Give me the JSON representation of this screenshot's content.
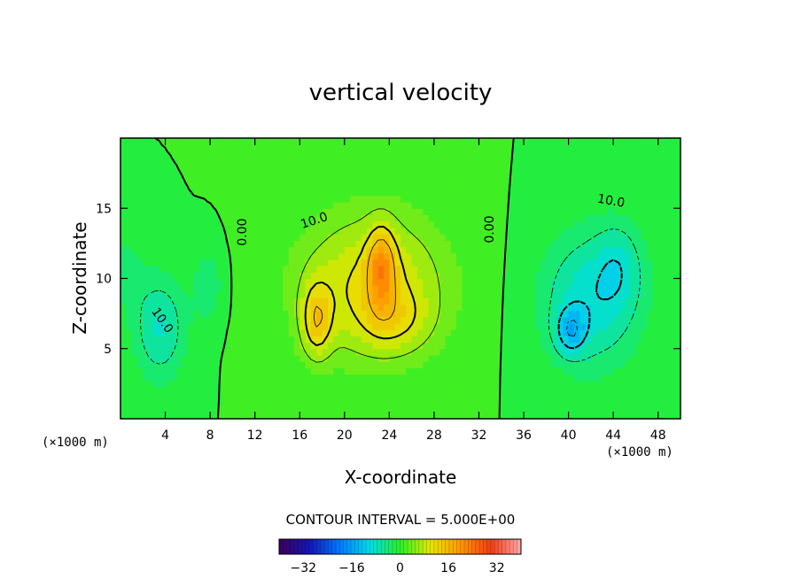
{
  "chart_data": {
    "type": "heatmap",
    "title": "vertical velocity",
    "xlabel": "X-coordinate",
    "ylabel": "Z-coordinate",
    "x_unit": "(×1000 m)",
    "z_unit": "(×1000 m)",
    "xlim": [
      0,
      50
    ],
    "ylim": [
      0,
      20
    ],
    "x_ticks": [
      4,
      8,
      12,
      16,
      20,
      24,
      28,
      32,
      36,
      40,
      44,
      48
    ],
    "y_ticks": [
      5,
      10,
      15
    ],
    "contour_interval_text": "CONTOUR INTERVAL = 5.000E+00",
    "contour_labels": [
      {
        "text": "10.0",
        "x": 17.3,
        "z": 14.1,
        "angle": -18
      },
      {
        "text": "0.00",
        "x": 10.9,
        "z": 13.3,
        "angle": -90
      },
      {
        "text": "0.00",
        "x": 33.0,
        "z": 13.5,
        "angle": -90
      },
      {
        "text": "10.0",
        "x": 43.8,
        "z": 15.5,
        "angle": 10
      },
      {
        "text": "10.0",
        "x": 3.7,
        "z": 7.0,
        "angle": 55
      }
    ],
    "colorbar": {
      "range": [
        -40,
        40
      ],
      "ticks": [
        -32,
        -16,
        0,
        16,
        32
      ]
    },
    "features": [
      {
        "cx": 22.5,
        "cz": 9.5,
        "sx": 6.5,
        "sz": 5.2,
        "amp": 11
      },
      {
        "cx": 17.5,
        "cz": 7.0,
        "sx": 1.3,
        "sz": 2.6,
        "amp": 11
      },
      {
        "cx": 23.3,
        "cz": 10.8,
        "sx": 1.2,
        "sz": 2.8,
        "amp": 13
      },
      {
        "cx": 24.5,
        "cz": 7.0,
        "sx": 3.0,
        "sz": 2.2,
        "amp": 5
      },
      {
        "cx": 42.0,
        "cz": 8.5,
        "sx": 4.5,
        "sz": 5.0,
        "amp": -9
      },
      {
        "cx": 40.2,
        "cz": 6.3,
        "sx": 1.3,
        "sz": 1.6,
        "amp": -10
      },
      {
        "cx": 44.5,
        "cz": 11.0,
        "sx": 2.0,
        "sz": 3.0,
        "amp": -5
      },
      {
        "cx": 3.5,
        "cz": 6.5,
        "sx": 2.4,
        "sz": 3.8,
        "amp": -8
      },
      {
        "cx": 0.5,
        "cz": 10.5,
        "sx": 1.5,
        "sz": 2.5,
        "amp": -4
      },
      {
        "cx": 7.8,
        "cz": 9.5,
        "sx": 1.2,
        "sz": 2.5,
        "amp": -5
      }
    ]
  }
}
